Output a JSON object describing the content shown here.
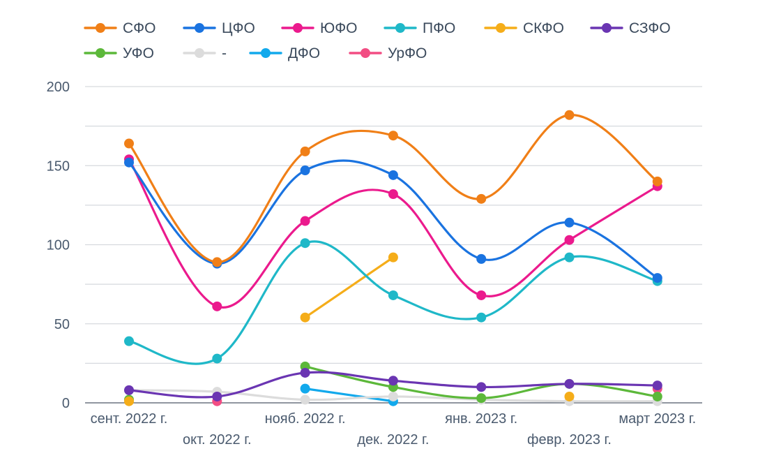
{
  "chart_data": {
    "type": "line",
    "title": "",
    "xlabel": "",
    "ylabel": "",
    "ylim": [
      0,
      200
    ],
    "yticks": [
      0,
      50,
      100,
      150,
      200
    ],
    "grid": true,
    "legend_position": "top-left",
    "categories": [
      "сент. 2022 г.",
      "окт. 2022 г.",
      "нояб. 2022 г.",
      "дек. 2022 г.",
      "янв. 2023 г.",
      "февр. 2023 г.",
      "март 2023 г."
    ],
    "series": [
      {
        "name": "СФО",
        "color": "#f07f17",
        "values": [
          164,
          89,
          159,
          169,
          129,
          182,
          140
        ]
      },
      {
        "name": "ЦФО",
        "color": "#1a73e0",
        "values": [
          152,
          88,
          147,
          144,
          91,
          114,
          79
        ]
      },
      {
        "name": "ЮФО",
        "color": "#eb1a8d",
        "values": [
          154,
          61,
          115,
          132,
          68,
          103,
          137
        ]
      },
      {
        "name": "ПФО",
        "color": "#1fb8c8",
        "values": [
          39,
          28,
          101,
          68,
          54,
          92,
          77
        ]
      },
      {
        "name": "СКФО",
        "color": "#f5ad19",
        "values": [
          1,
          null,
          54,
          92,
          null,
          4,
          null
        ]
      },
      {
        "name": "СЗФО",
        "color": "#6a35b2",
        "values": [
          8,
          4,
          19,
          14,
          10,
          12,
          11
        ]
      },
      {
        "name": "УФО",
        "color": "#5cb83a",
        "values": [
          2,
          null,
          23,
          10,
          3,
          12,
          4
        ]
      },
      {
        "name": "-",
        "color": "#dcdcdc",
        "values": [
          8,
          7,
          2,
          4,
          2,
          1,
          1
        ]
      },
      {
        "name": "ДФО",
        "color": "#12a9ec",
        "values": [
          null,
          null,
          9,
          1,
          null,
          null,
          null
        ]
      },
      {
        "name": "УрФО",
        "color": "#f24d83",
        "values": [
          null,
          1,
          null,
          null,
          null,
          null,
          9
        ]
      }
    ]
  }
}
